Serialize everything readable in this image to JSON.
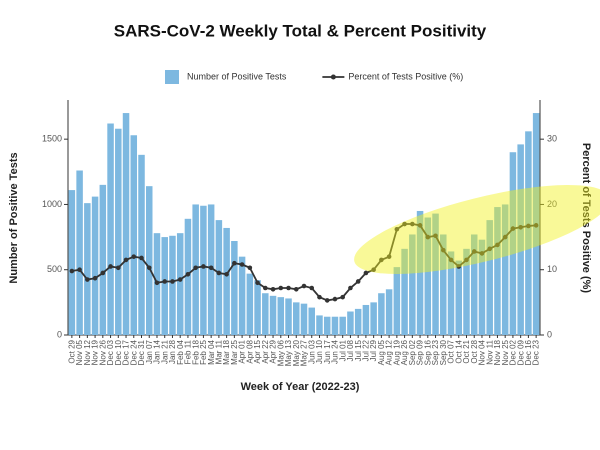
{
  "chart_data": {
    "type": "bar_line",
    "title": "SARS-CoV-2 Weekly Total & Percent Positivity",
    "x_label": "Week of Year (2022-23)",
    "y_label": "Number of Positive Tests",
    "y2_label": "Percent of Tests Positive (%)",
    "categories": [
      "Oct 29",
      "Nov 05",
      "Nov 12",
      "Nov 19",
      "Nov 26",
      "Dec 03",
      "Dec 10",
      "Dec 17",
      "Dec 24",
      "Dec 31",
      "Jan 07",
      "Jan 14",
      "Jan 21",
      "Jan 28",
      "Feb 04",
      "Feb 11",
      "Feb 18",
      "Feb 25",
      "Mar 04",
      "Mar 11",
      "Mar 18",
      "Mar 25",
      "Apr 01",
      "Apr 08",
      "Apr 15",
      "Apr 22",
      "Apr 29",
      "May 06",
      "May 13",
      "May 20",
      "May 27",
      "Jun 03",
      "Jun 10",
      "Jun 17",
      "Jun 24",
      "Jul 01",
      "Jul 08",
      "Jul 15",
      "Jul 22",
      "Jul 29",
      "Aug 05",
      "Aug 12",
      "Aug 19",
      "Aug 26",
      "Sep 02",
      "Sep 09",
      "Sep 16",
      "Sep 23",
      "Sep 30",
      "Oct 07",
      "Oct 14",
      "Oct 21",
      "Oct 28",
      "Nov 04",
      "Nov 11",
      "Nov 18",
      "Nov 25",
      "Dec 02",
      "Dec 09",
      "Dec 16",
      "Dec 23"
    ],
    "series": [
      {
        "name": "Number of Positive Tests",
        "type": "bar",
        "color": "#7db8e0",
        "values": [
          1110,
          1260,
          1010,
          1060,
          1150,
          1620,
          1580,
          1700,
          1530,
          1380,
          1140,
          780,
          750,
          760,
          780,
          890,
          1000,
          990,
          1000,
          880,
          820,
          720,
          600,
          470,
          420,
          320,
          300,
          290,
          280,
          250,
          240,
          210,
          150,
          140,
          140,
          140,
          180,
          200,
          230,
          250,
          320,
          350,
          520,
          660,
          770,
          950,
          900,
          930,
          770,
          640,
          570,
          660,
          770,
          730,
          880,
          980,
          1000,
          1400,
          1460,
          1560,
          1700
        ]
      },
      {
        "name": "Percent of Tests Positive (%)",
        "type": "line",
        "axis": "y2",
        "color": "#333333",
        "values": [
          9.8,
          10,
          8.5,
          8.7,
          9.5,
          10.5,
          10.3,
          11.5,
          12,
          11.8,
          10.3,
          8,
          8.2,
          8.2,
          8.5,
          9.3,
          10.3,
          10.5,
          10.3,
          9.5,
          9.3,
          11,
          10.8,
          10.3,
          8,
          7.2,
          7.0,
          7.2,
          7.2,
          7.0,
          7.5,
          7.2,
          5.8,
          5.3,
          5.5,
          5.8,
          7.2,
          8.2,
          9.5,
          10,
          11.5,
          12,
          16.2,
          17,
          17,
          16.8,
          15,
          15.2,
          13,
          11.5,
          10.5,
          11.5,
          12.8,
          12.5,
          13.2,
          13.8,
          15,
          16.3,
          16.5,
          16.7,
          16.8
        ]
      }
    ],
    "ylim": [
      0,
      1800
    ],
    "yticks": [
      0,
      500,
      1000,
      1500
    ],
    "y2lim": [
      0,
      36
    ],
    "y2ticks": [
      0,
      10,
      20,
      30
    ],
    "legend": "top"
  }
}
